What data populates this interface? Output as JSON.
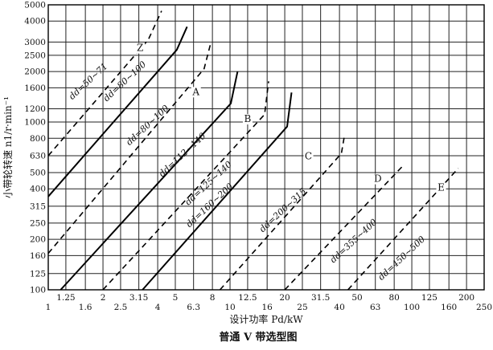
{
  "chart_data": {
    "type": "line",
    "title": "普通 V 带选型图",
    "xlabel": "设计功率 Pd/kW",
    "ylabel": "小带轮转速 n1/r·min⁻¹",
    "x_scale": "log",
    "y_scale": "log",
    "xlim": [
      1,
      250
    ],
    "ylim": [
      100,
      5000
    ],
    "x_ticks_lower": [
      "1",
      "1.6",
      "2.5",
      "4",
      "6.3",
      "10",
      "16",
      "25",
      "40",
      "63",
      "100",
      "160",
      "250"
    ],
    "x_ticks_upper": [
      "1.25",
      "2",
      "3.15",
      "5",
      "8",
      "12.5",
      "20",
      "31.5",
      "50",
      "80",
      "125",
      "200"
    ],
    "y_ticks": [
      "100",
      "125",
      "160",
      "200",
      "250",
      "315",
      "400",
      "500",
      "630",
      "800",
      "1000",
      "1200",
      "1600",
      "2000",
      "2500",
      "3000",
      "4000",
      "5000"
    ],
    "type_labels": [
      {
        "text": "Z",
        "x": 3.2,
        "y": 2650
      },
      {
        "text": "A",
        "x": 6.5,
        "y": 1450
      },
      {
        "text": "B",
        "x": 12.5,
        "y": 1000
      },
      {
        "text": "C",
        "x": 27,
        "y": 600
      },
      {
        "text": "D",
        "x": 65,
        "y": 440
      },
      {
        "text": "E",
        "x": 145,
        "y": 390
      }
    ],
    "annotations": [
      {
        "text": "dd=50~71",
        "x": 1.7,
        "y": 1700
      },
      {
        "text": "dd=80~100",
        "x": 2.7,
        "y": 1700
      },
      {
        "text": "dd=80~100",
        "x": 3.6,
        "y": 930
      },
      {
        "text": "dd=112~140",
        "x": 5.6,
        "y": 620
      },
      {
        "text": "dd=125~140",
        "x": 7.8,
        "y": 420
      },
      {
        "text": "dd=160~200",
        "x": 7.9,
        "y": 310
      },
      {
        "text": "dd=200~315",
        "x": 20,
        "y": 290
      },
      {
        "text": "dd=355~400",
        "x": 49,
        "y": 190
      },
      {
        "text": "dd=450~500",
        "x": 90,
        "y": 150
      }
    ],
    "series": [
      {
        "style": "dashed",
        "points": [
          [
            1,
            630
          ],
          [
            3.55,
            3100
          ],
          [
            4.2,
            4600
          ]
        ]
      },
      {
        "style": "solid",
        "points": [
          [
            1,
            360
          ],
          [
            5.1,
            2700
          ],
          [
            5.8,
            3700
          ]
        ]
      },
      {
        "style": "dashed",
        "points": [
          [
            1,
            165
          ],
          [
            7.2,
            2080
          ],
          [
            7.8,
            2900
          ]
        ]
      },
      {
        "style": "solid",
        "points": [
          [
            1.17,
            100
          ],
          [
            10.1,
            1290
          ],
          [
            11.0,
            2000
          ]
        ]
      },
      {
        "style": "dashed",
        "points": [
          [
            2.0,
            100
          ],
          [
            15.5,
            1110
          ],
          [
            16.3,
            1750
          ]
        ]
      },
      {
        "style": "solid",
        "points": [
          [
            3.3,
            100
          ],
          [
            20.6,
            940
          ],
          [
            21.8,
            1500
          ]
        ]
      },
      {
        "style": "dashed",
        "points": [
          [
            8.8,
            100
          ],
          [
            41.0,
            650
          ],
          [
            42.5,
            820
          ]
        ]
      },
      {
        "style": "dashed",
        "points": [
          [
            20,
            100
          ],
          [
            91,
            560
          ]
        ]
      },
      {
        "style": "dashed",
        "points": [
          [
            44.5,
            100
          ],
          [
            180,
            530
          ]
        ]
      }
    ]
  }
}
